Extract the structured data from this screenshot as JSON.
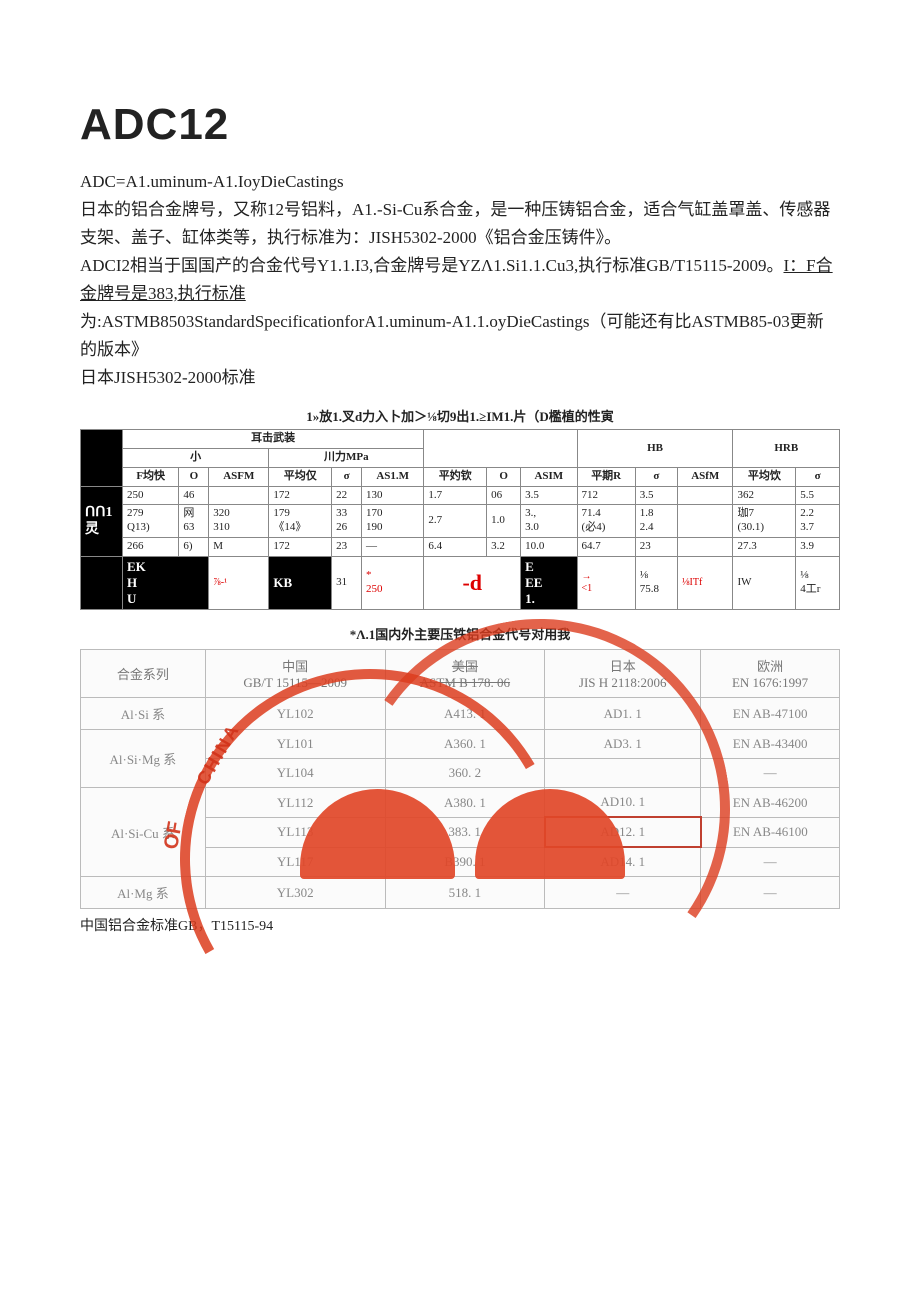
{
  "title": "ADC12",
  "intro": {
    "l1": "ADC=A1.uminum-A1.IoyDieCastings",
    "l2": "日本的铝合金牌号，又称12号铝料，A1.-Si-Cu系合金，是一种压铸铝合金，适合气缸盖罩盖、传感器支架、盖子、缸体类等，执行标准为：JISH5302-2000《铝合金压铸件》。",
    "l3a": "ADCI2相当于国国产的合金代号Y1.1.I3,合金牌号是YZΛ1.Si1.1.Cu3,执行标准GB/T15115-2009。",
    "l3u": "I：F合金牌号是383,执行标准",
    "l4": "为:ASTMB8503StandardSpecificationforA1.uminum-A1.1.oyDieCastings（可能还有比ASTMB85-03更新的版本》",
    "l5": "日本JISH5302-2000标准"
  },
  "table1": {
    "title": "1»放1.叉d力入卜加＞⅛切9出1.≥IM1.片（D檻植的性寅",
    "top_span": "耳击武装",
    "h_sub1": "小",
    "h_sub2": "川力MPa",
    "h_hb": "HB",
    "h_hrb": "HRB",
    "cols": [
      "F均快",
      "O",
      "ASFM",
      "平均仅",
      "σ",
      "AS1.M",
      "平妁钦",
      "O",
      "ASIM",
      "平期R",
      "σ",
      "ASfM",
      "平均饮",
      "σ"
    ],
    "rowlabel": "ᑎᑎ1\n灵",
    "r1": [
      "250",
      "46",
      "",
      "172",
      "22",
      "130",
      "1.7",
      "06",
      "3.5",
      "712",
      "3.5",
      "",
      "362",
      "5.5"
    ],
    "r2": [
      "279\nQ13)",
      "网\n63",
      "320\n310",
      "179\n《14》",
      "33\n26",
      "170\n190",
      "2.7",
      "1.0",
      "3.,\n3.0",
      "71.4\n(必4)",
      "1.8\n2.4",
      "",
      "珈7\n(30.1)",
      "2.2\n3.7"
    ],
    "r3": [
      "266",
      "6)",
      "M",
      "172",
      "23",
      "—",
      "6.4",
      "3.2",
      "10.0",
      "64.7",
      "23",
      "",
      "27.3",
      "3.9"
    ],
    "r4_a": "EK\nH\nU",
    "r4_b": "⅞-¹",
    "r4_c": "KB",
    "r4_d": "31",
    "r4_e": "*",
    "r4_f": "250",
    "r4_g": "-d",
    "r4_h": "E\nEE\n1.",
    "r4_i": "→\n<1",
    "r4_j": "⅛\n75.8",
    "r4_k": "⅛ITf",
    "r4_l": "IW",
    "r4_m": "⅛\n4工r"
  },
  "table2": {
    "title": "*Λ.1国内外主要压铁铝合金代号对用我",
    "head": [
      "合金系列",
      "中国\nGB/T 15115—2009",
      "美国\nASTM B 178.   06",
      "日本\nJIS H 2118:2006",
      "欧洲\nEN 1676:1997"
    ],
    "rows": [
      [
        "Al·Si 系",
        "YL102",
        "A413. 1",
        "AD1. 1",
        "EN AB-47100"
      ],
      [
        "Al·Si·Mg 系",
        "YL101",
        "A360. 1",
        "AD3. 1",
        "EN AB-43400"
      ],
      [
        "",
        "YL104",
        "360. 2",
        "",
        "—"
      ],
      [
        "",
        "YL112",
        "A380. 1",
        "AD10. 1",
        "EN AB-46200"
      ],
      [
        "Al·Si-Cu 系",
        "YL113",
        "383. 1",
        "AD12. 1",
        "EN AB-46100"
      ],
      [
        "",
        "YL117",
        "B390. 1",
        "AD14. 1",
        "—"
      ],
      [
        "Al·Mg 系",
        "YL302",
        "518. 1",
        "—",
        "—"
      ]
    ]
  },
  "footnote": "中国铝合金标准GB，T15115-94",
  "colors": {
    "text": "#222222",
    "border": "#888888",
    "border2": "#bbbbbb",
    "stamp": "#dc3c1e",
    "faded": "#888888"
  }
}
